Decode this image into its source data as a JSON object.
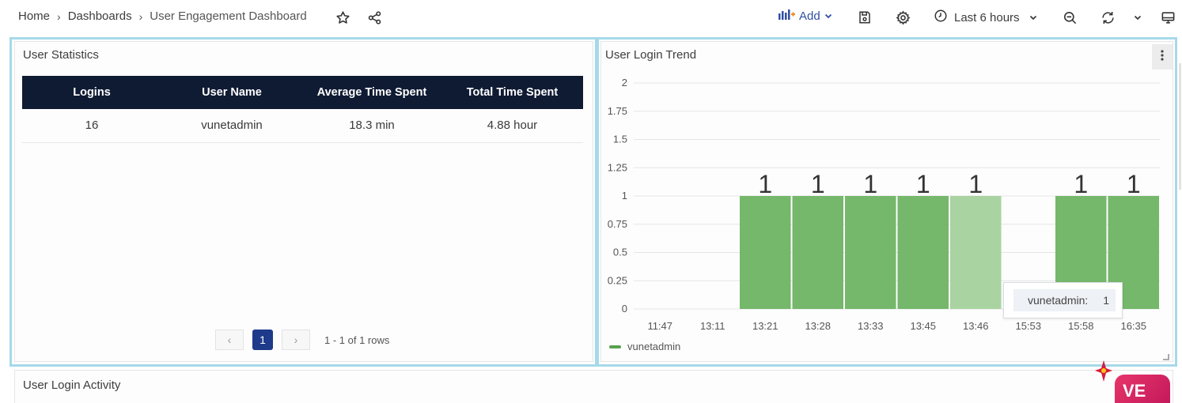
{
  "breadcrumb": {
    "items": [
      "Home",
      "Dashboards",
      "User Engagement Dashboard"
    ],
    "separator": "›"
  },
  "toolbar": {
    "add_label": "Add",
    "time_range_label": "Last 6 hours",
    "icons": [
      "star-icon",
      "share-icon",
      "chart-add-icon",
      "save-icon",
      "settings-icon",
      "clock-icon",
      "zoom-out-icon",
      "refresh-icon",
      "chevron-down-icon",
      "tv-mode-icon"
    ]
  },
  "user_statistics": {
    "title": "User Statistics",
    "columns": [
      "Logins",
      "User Name",
      "Average Time Spent",
      "Total Time Spent"
    ],
    "rows": [
      [
        "16",
        "vunetadmin",
        "18.3 min",
        "4.88 hour"
      ]
    ],
    "pagination": {
      "prev": "‹",
      "next": "›",
      "current_page": "1",
      "info": "1 - 1 of 1 rows"
    }
  },
  "user_login_trend": {
    "title": "User Login Trend",
    "tooltip": {
      "label": "vunetadmin:",
      "value": "1"
    },
    "legend": [
      "vunetadmin"
    ]
  },
  "user_login_activity": {
    "title": "User Login Activity"
  },
  "brand": {
    "logo_text": "VE"
  },
  "colors": {
    "accent": "#2f4fa3",
    "table_header": "#0f1a33",
    "bar": "#75b76b",
    "bar_hover": "#a9d3a1",
    "panel_highlight": "#a6d9ea",
    "page_button": "#1e3a8a"
  },
  "chart_data": {
    "type": "bar",
    "categories": [
      "11:47",
      "13:11",
      "13:21",
      "13:28",
      "13:33",
      "13:45",
      "13:46",
      "15:53",
      "15:58",
      "16:35"
    ],
    "series": [
      {
        "name": "vunetadmin",
        "values": [
          0,
          0,
          1,
          1,
          1,
          1,
          1,
          0,
          1,
          1
        ]
      }
    ],
    "data_labels": [
      "",
      "",
      "1",
      "1",
      "1",
      "1",
      "1",
      "",
      "1",
      "1"
    ],
    "highlighted_index": 6,
    "yticks": [
      "0",
      "0.25",
      "0.5",
      "0.75",
      "1",
      "1.25",
      "1.5",
      "1.75",
      "2"
    ],
    "ylim": [
      0,
      2
    ],
    "grid": true,
    "legend_position": "bottom-left"
  }
}
